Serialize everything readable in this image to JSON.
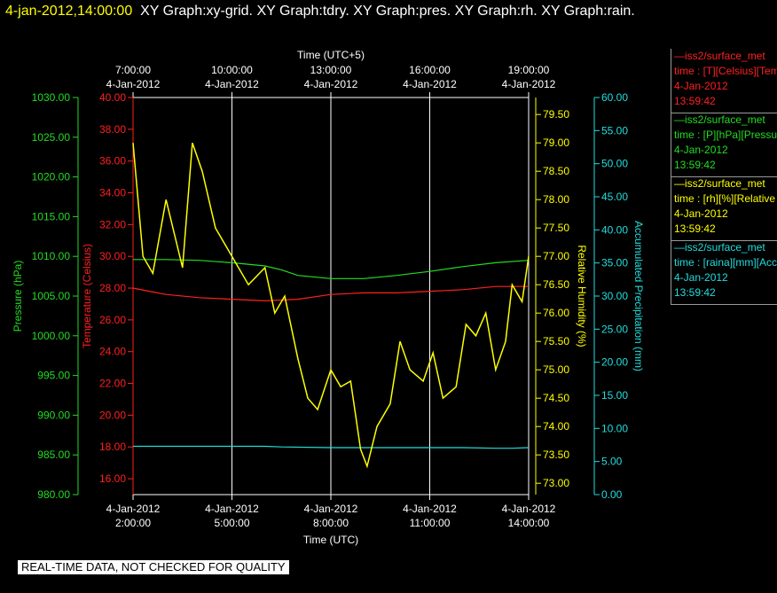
{
  "header": {
    "date_time": "4-jan-2012,14:00:00",
    "graphs": "XY Graph:xy-grid.  XY Graph:tdry.  XY Graph:pres.  XY Graph:rh.  XY Graph:rain."
  },
  "footer": {
    "note": "REAL-TIME DATA, NOT CHECKED FOR QUALITY"
  },
  "colors": {
    "temperature": "#ff2020",
    "pressure": "#22dd22",
    "humidity": "#ffff00",
    "precip": "#22dddd",
    "grid": "#ffffff"
  },
  "legend": [
    {
      "line1": "—iss2/surface_met",
      "line2": "time : [T][Celsius][Temp",
      "date": "4-Jan-2012",
      "time": "13:59:42",
      "color": "#ff2020"
    },
    {
      "line1": "—iss2/surface_met",
      "line2": "time : [P][hPa][Pressure",
      "date": "4-Jan-2012",
      "time": "13:59:42",
      "color": "#22dd22"
    },
    {
      "line1": "—iss2/surface_met",
      "line2": "time : [rh][%][Relative",
      "date": "4-Jan-2012",
      "time": "13:59:42",
      "color": "#ffff00"
    },
    {
      "line1": "—iss2/surface_met",
      "line2": "time : [raina][mm][Accu",
      "date": "4-Jan-2012",
      "time": "13:59:42",
      "color": "#22dddd"
    }
  ],
  "chart_data": {
    "type": "line",
    "x_range": [
      "02:00",
      "14:00"
    ],
    "top_axis": {
      "label": "Time (UTC+5)",
      "ticks": [
        {
          "time": "7:00:00",
          "date": "4-Jan-2012"
        },
        {
          "time": "10:00:00",
          "date": "4-Jan-2012"
        },
        {
          "time": "13:00:00",
          "date": "4-Jan-2012"
        },
        {
          "time": "16:00:00",
          "date": "4-Jan-2012"
        },
        {
          "time": "19:00:00",
          "date": "4-Jan-2012"
        }
      ]
    },
    "bottom_axis": {
      "label": "Time (UTC)",
      "ticks": [
        {
          "time": "2:00:00",
          "date": "4-Jan-2012"
        },
        {
          "time": "5:00:00",
          "date": "4-Jan-2012"
        },
        {
          "time": "8:00:00",
          "date": "4-Jan-2012"
        },
        {
          "time": "11:00:00",
          "date": "4-Jan-2012"
        },
        {
          "time": "14:00:00",
          "date": "4-Jan-2012"
        }
      ]
    },
    "pressure_axis": {
      "label": "Pressure (hPa)",
      "ylim": [
        980,
        1030
      ],
      "ticks": [
        "980.00",
        "985.00",
        "990.00",
        "995.00",
        "1000.00",
        "1005.00",
        "1010.00",
        "1015.00",
        "1020.00",
        "1025.00",
        "1030.00"
      ]
    },
    "temperature_axis": {
      "label": "Temperature (Celsius)",
      "ylim": [
        15,
        40
      ],
      "ticks": [
        "16.00",
        "18.00",
        "20.00",
        "22.00",
        "24.00",
        "26.00",
        "28.00",
        "30.00",
        "32.00",
        "34.00",
        "36.00",
        "38.00",
        "40.00"
      ]
    },
    "humidity_axis": {
      "label": "Relative Humidity (%)",
      "ylim": [
        72.8,
        79.8
      ],
      "ticks": [
        "73.00",
        "73.50",
        "74.00",
        "74.50",
        "75.00",
        "75.50",
        "76.00",
        "76.50",
        "77.00",
        "77.50",
        "78.00",
        "78.50",
        "79.00",
        "79.50"
      ]
    },
    "precip_axis": {
      "label": "Accumulated Precipitation (mm)",
      "ylim": [
        0,
        60
      ],
      "ticks": [
        "0.00",
        "5.00",
        "10.00",
        "15.00",
        "20.00",
        "25.00",
        "30.00",
        "35.00",
        "40.00",
        "45.00",
        "50.00",
        "55.00",
        "60.00"
      ]
    },
    "series": [
      {
        "key": "pressure",
        "axis": "pressure",
        "x": [
          2,
          3,
          4,
          5,
          6,
          6.5,
          7,
          8,
          9,
          10,
          11,
          12,
          13,
          14
        ],
        "y": [
          1009.6,
          1009.6,
          1009.5,
          1009.2,
          1008.8,
          1008.3,
          1007.6,
          1007.2,
          1007.2,
          1007.6,
          1008.1,
          1008.7,
          1009.2,
          1009.5
        ]
      },
      {
        "key": "temperature",
        "axis": "temperature",
        "x": [
          2,
          2.5,
          3,
          4,
          5,
          6,
          7,
          8,
          9,
          10,
          11,
          12,
          13,
          14
        ],
        "y": [
          28.0,
          27.8,
          27.6,
          27.4,
          27.3,
          27.2,
          27.3,
          27.6,
          27.7,
          27.7,
          27.8,
          27.9,
          28.1,
          28.1
        ]
      },
      {
        "key": "precip",
        "axis": "precip",
        "x": [
          2,
          4,
          6,
          6.5,
          8,
          10,
          12,
          13,
          13.5,
          14
        ],
        "y": [
          7.3,
          7.3,
          7.3,
          7.2,
          7.1,
          7.1,
          7.1,
          7.0,
          7.0,
          7.1
        ]
      },
      {
        "key": "humidity",
        "axis": "humidity",
        "x": [
          2,
          2.3,
          2.6,
          3,
          3.5,
          3.8,
          4.1,
          4.5,
          5,
          5.5,
          6,
          6.3,
          6.6,
          7,
          7.3,
          7.6,
          8,
          8.3,
          8.6,
          8.9,
          9.1,
          9.4,
          9.8,
          10.1,
          10.4,
          10.8,
          11.1,
          11.4,
          11.8,
          12.1,
          12.4,
          12.7,
          13,
          13.3,
          13.5,
          13.8,
          14
        ],
        "y": [
          79.0,
          77.0,
          76.7,
          78.0,
          76.8,
          79.0,
          78.5,
          77.5,
          77.0,
          76.5,
          76.8,
          76.0,
          76.3,
          75.2,
          74.5,
          74.3,
          75.0,
          74.7,
          74.8,
          73.6,
          73.3,
          74.0,
          74.4,
          75.5,
          75.0,
          74.8,
          75.3,
          74.5,
          74.7,
          75.8,
          75.6,
          76.0,
          75.0,
          75.5,
          76.5,
          76.2,
          77.0
        ]
      }
    ]
  }
}
